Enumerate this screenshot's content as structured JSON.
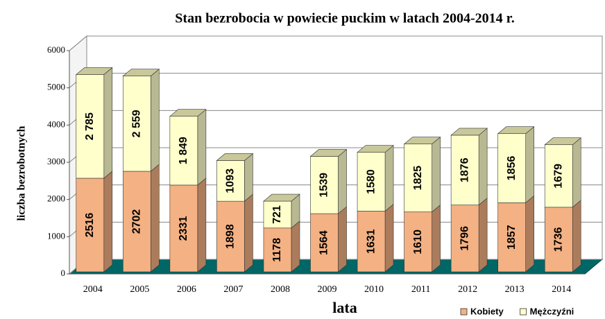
{
  "chart_data": {
    "type": "stacked_bar_3d",
    "title": "Stan bezrobocia  w powiecie  puckim  w latach 2004-2014 r.",
    "y_label": "liczba bezrobotnych",
    "x_label": "lata",
    "categories": [
      "2004",
      "2005",
      "2006",
      "2007",
      "2008",
      "2009",
      "2010",
      "2011",
      "2012",
      "2013",
      "2014"
    ],
    "series": [
      {
        "name": "Kobiety",
        "color": "#f4b183",
        "values": [
          2516,
          2702,
          2331,
          1898,
          1178,
          1564,
          1631,
          1610,
          1796,
          1857,
          1736
        ]
      },
      {
        "name": "Mężczyźni",
        "color": "#ffffcc",
        "values": [
          2785,
          2559,
          1849,
          1093,
          721,
          1539,
          1580,
          1825,
          1876,
          1856,
          1679
        ],
        "value_labels": [
          "2 785",
          "2 559",
          "1 849",
          "1093",
          "721",
          "1539",
          "1580",
          "1825",
          "1876",
          "1856",
          "1679"
        ]
      }
    ],
    "ylim": [
      0,
      6000
    ],
    "yticks": [
      0,
      1000,
      2000,
      3000,
      4000,
      5000,
      6000
    ],
    "grid": true,
    "legend": "lower right"
  }
}
